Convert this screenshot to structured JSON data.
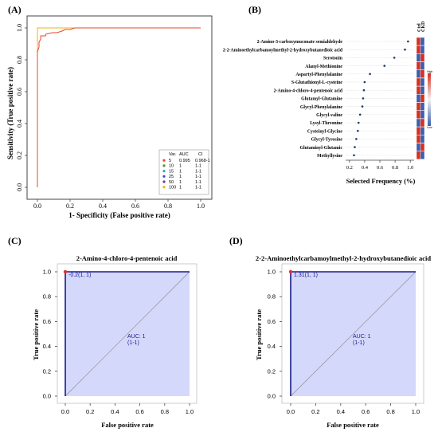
{
  "panels": {
    "a": {
      "letter": "(A)",
      "chart_data": {
        "type": "line",
        "xlabel": "1- Specificity (False positive rate)",
        "ylabel": "Sensitivity (True positive rate)",
        "xlim": [
          0,
          1
        ],
        "ylim": [
          0,
          1
        ],
        "xticks": [
          "0.0",
          "0.2",
          "0.4",
          "0.6",
          "0.8",
          "1.0"
        ],
        "yticks": [
          "0.0",
          "0.2",
          "0.4",
          "0.6",
          "0.8",
          "1.0"
        ],
        "legend": {
          "placement": "bottom-right",
          "headers": [
            "Var.",
            "AUC",
            "CI"
          ],
          "entries": [
            {
              "var": "5",
              "auc": "0.995",
              "ci": "0.968-1",
              "color": "#e8452e"
            },
            {
              "var": "10",
              "auc": "1",
              "ci": "1-1",
              "color": "#4b9a2e"
            },
            {
              "var": "15",
              "auc": "1",
              "ci": "1-1",
              "color": "#3aa2c9"
            },
            {
              "var": "25",
              "auc": "1",
              "ci": "1-1",
              "color": "#2a4fd0"
            },
            {
              "var": "50",
              "auc": "1",
              "ci": "1-1",
              "color": "#7a2f9c"
            },
            {
              "var": "100",
              "auc": "1",
              "ci": "1-1",
              "color": "#f2b400"
            }
          ]
        },
        "series": [
          {
            "color": "#e8452e",
            "x": [
              0,
              0,
              0.01,
              0.01,
              0.02,
              0.02,
              0.05,
              0.05,
              0.09,
              0.12,
              0.15,
              0.17,
              0.2,
              0.23,
              1.0
            ],
            "y": [
              0,
              0.85,
              0.88,
              0.91,
              0.93,
              0.95,
              0.95,
              0.96,
              0.97,
              0.97,
              0.98,
              0.99,
              0.99,
              1.0,
              1.0
            ]
          },
          {
            "color": "#f2b400",
            "x": [
              0,
              0,
              1.0
            ],
            "y": [
              0,
              1.0,
              1.0
            ]
          }
        ]
      }
    },
    "b": {
      "letter": "(B)",
      "chart_data": {
        "type": "scatter",
        "xlabel": "Selected Frequency (%)",
        "xticks": [
          "0.2",
          "0.4",
          "0.6",
          "0.8",
          "1.0"
        ],
        "xlim": [
          0.15,
          1.05
        ],
        "categories": [
          "2-Amino-3-carboxymuconate semialdehyde",
          "2-2-Aminoethylcarbamoylmethyl-2-hydroxybutanedioic acid",
          "Serotonin",
          "Alanyl-Methionine",
          "Aspartyl-Phenylalanine",
          "S-Glutathionyl-L-cysteine",
          "2-Amino-4-chloro-4-pentenoic acid",
          "Glutamyl-Glutamine",
          "Glycyl-Phenylalanine",
          "Glycyl-valine",
          "Lysyl-Threonine",
          "Cysteinyl-Glycine",
          "Glycyl-Tyrosine",
          "Glutaminyl-Glutamic",
          "Methyllysine"
        ],
        "values": [
          0.97,
          0.93,
          0.79,
          0.66,
          0.47,
          0.4,
          0.39,
          0.38,
          0.37,
          0.34,
          0.32,
          0.31,
          0.29,
          0.27,
          0.26
        ],
        "heat_headers": [
          "Ctrl",
          "CKD"
        ],
        "heat_colors": [
          [
            "#d7301f",
            "#3a5fb0"
          ],
          [
            "#d7301f",
            "#3a5fb0"
          ],
          [
            "#3a5fb0",
            "#d7301f"
          ],
          [
            "#d7301f",
            "#3a5fb0"
          ],
          [
            "#3a5fb0",
            "#d7301f"
          ],
          [
            "#d7301f",
            "#3a5fb0"
          ],
          [
            "#d7301f",
            "#3a5fb0"
          ],
          [
            "#3a5fb0",
            "#d7301f"
          ],
          [
            "#d7301f",
            "#3a5fb0"
          ],
          [
            "#d7301f",
            "#3a5fb0"
          ],
          [
            "#3a5fb0",
            "#d7301f"
          ],
          [
            "#d7301f",
            "#3a5fb0"
          ],
          [
            "#d7301f",
            "#3a5fb0"
          ],
          [
            "#3a5fb0",
            "#d7301f"
          ],
          [
            "#d7301f",
            "#3a5fb0"
          ]
        ],
        "colorbar": {
          "high": "High",
          "low": "Low"
        }
      }
    },
    "c": {
      "letter": "(C)",
      "chart_data": {
        "type": "line",
        "title": "2-Amino-4-chloro-4-pentenoic acid",
        "xlabel": "False positive rate",
        "ylabel": "True positive rate",
        "xlim": [
          0,
          1
        ],
        "ylim": [
          0,
          1
        ],
        "xticks": [
          "0.0",
          "0.2",
          "0.4",
          "0.6",
          "0.8",
          "1.0"
        ],
        "yticks": [
          "0.0",
          "0.2",
          "0.4",
          "0.6",
          "0.8",
          "1.0"
        ],
        "roc": {
          "x": [
            0,
            0,
            1
          ],
          "y": [
            0,
            1,
            1
          ]
        },
        "point": {
          "x": 0,
          "y": 1,
          "label": "-0.2(1, 1)"
        },
        "auc_text": "AUC: 1",
        "ci_text": "(1-1)"
      }
    },
    "d": {
      "letter": "(D)",
      "chart_data": {
        "type": "line",
        "title": "2-2-Aminoethylcarbamoylmethyl-2-hydroxybutanedioic acid",
        "xlabel": "False positive rate",
        "ylabel": "True positive rate",
        "xlim": [
          0,
          1
        ],
        "ylim": [
          0,
          1
        ],
        "xticks": [
          "0.0",
          "0.2",
          "0.4",
          "0.6",
          "0.8",
          "1.0"
        ],
        "yticks": [
          "0.0",
          "0.2",
          "0.4",
          "0.6",
          "0.8",
          "1.0"
        ],
        "roc": {
          "x": [
            0,
            0,
            1
          ],
          "y": [
            0,
            1,
            1
          ]
        },
        "point": {
          "x": 0,
          "y": 1,
          "label": "1.31(1, 1)"
        },
        "auc_text": "AUC: 1",
        "ci_text": "(1-1)"
      }
    }
  }
}
